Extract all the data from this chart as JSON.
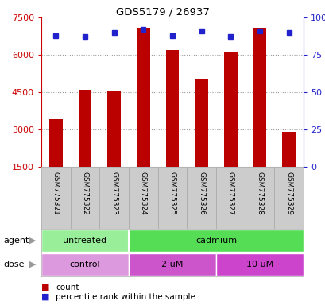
{
  "title": "GDS5179 / 26937",
  "samples": [
    "GSM775321",
    "GSM775322",
    "GSM775323",
    "GSM775324",
    "GSM775325",
    "GSM775326",
    "GSM775327",
    "GSM775328",
    "GSM775329"
  ],
  "counts": [
    3400,
    4600,
    4550,
    7100,
    6200,
    5000,
    6100,
    7100,
    2900
  ],
  "percentiles": [
    88,
    87,
    90,
    92,
    88,
    91,
    87,
    91,
    90
  ],
  "ylim_left": [
    1500,
    7500
  ],
  "ylim_right": [
    0,
    100
  ],
  "yticks_left": [
    1500,
    3000,
    4500,
    6000,
    7500
  ],
  "yticks_right": [
    0,
    25,
    50,
    75,
    100
  ],
  "bar_color": "#bb0000",
  "dot_color": "#2222cc",
  "agent_groups": [
    {
      "label": "untreated",
      "start": 0,
      "end": 3,
      "color": "#99ee99"
    },
    {
      "label": "cadmium",
      "start": 3,
      "end": 9,
      "color": "#55dd55"
    }
  ],
  "dose_groups": [
    {
      "label": "control",
      "start": 0,
      "end": 3,
      "color": "#dd99dd"
    },
    {
      "label": "2 uM",
      "start": 3,
      "end": 6,
      "color": "#cc55cc"
    },
    {
      "label": "10 uM",
      "start": 6,
      "end": 9,
      "color": "#cc44cc"
    }
  ],
  "left_color": "#cc0000",
  "right_color": "#2222cc",
  "grid_color": "#999999",
  "sample_bg": "#cccccc",
  "bar_width": 0.45
}
